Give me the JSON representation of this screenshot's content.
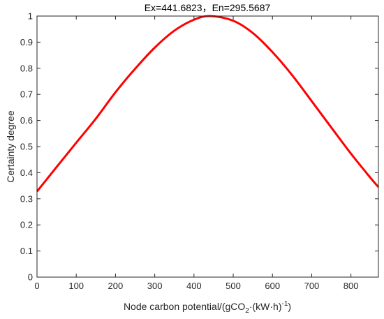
{
  "chart_data": {
    "type": "line",
    "title": "Ex=441.6823，En=295.5687",
    "xlabel": {
      "prefix": "Node carbon potential/(gCO",
      "sub": "2",
      "middle": "·(kW·h)",
      "sup": "-1",
      "suffix": ")"
    },
    "ylabel": "Certainty degree",
    "xlim": [
      0,
      870
    ],
    "ylim": [
      0,
      1
    ],
    "xticks": [
      "0",
      "100",
      "200",
      "300",
      "400",
      "500",
      "600",
      "700",
      "800"
    ],
    "yticks": [
      "0",
      "0.1",
      "0.2",
      "0.3",
      "0.4",
      "0.5",
      "0.6",
      "0.7",
      "0.8",
      "0.9",
      "1"
    ],
    "grid": false,
    "legend": "none",
    "series": [
      {
        "color": "#ff0000",
        "x": [
          0,
          50,
          100,
          150,
          200,
          250,
          300,
          350,
          400,
          441.6823,
          500,
          550,
          600,
          650,
          700,
          750,
          800,
          850,
          870
        ],
        "y": [
          0.328,
          0.422,
          0.515,
          0.607,
          0.708,
          0.798,
          0.879,
          0.944,
          0.986,
          1.0,
          0.982,
          0.935,
          0.862,
          0.774,
          0.674,
          0.573,
          0.473,
          0.38,
          0.345
        ]
      }
    ]
  }
}
